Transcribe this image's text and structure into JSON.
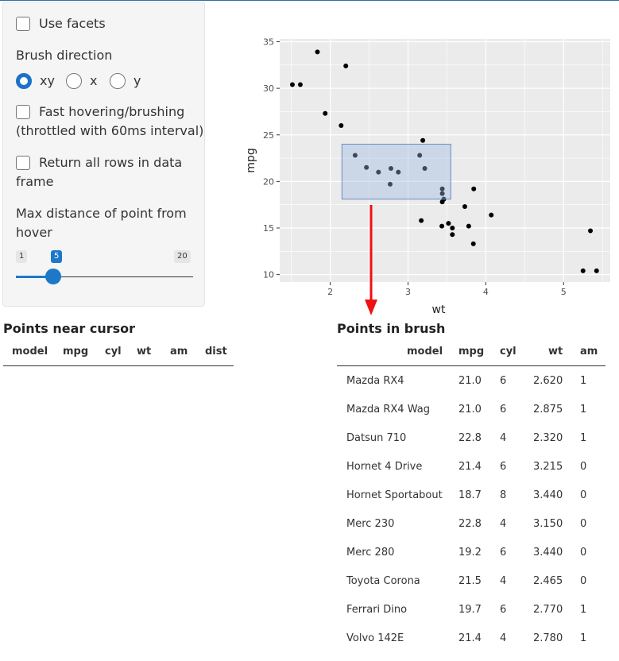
{
  "controls": {
    "use_facets_label": "Use facets",
    "brush_direction_label": "Brush direction",
    "brush_options": [
      "xy",
      "x",
      "y"
    ],
    "brush_selected": "xy",
    "fast_hover_label_1": "Fast hovering/brushing",
    "fast_hover_label_2": "(throttled with 60ms interval)",
    "return_rows_label_1": "Return all rows in data",
    "return_rows_label_2": "frame",
    "max_distance_label_1": "Max distance of point from",
    "max_distance_label_2": "hover",
    "slider": {
      "min": "1",
      "max": "20",
      "value": "5"
    }
  },
  "near_cursor": {
    "title": "Points near cursor",
    "columns": [
      "model",
      "mpg",
      "cyl",
      "wt",
      "am",
      "dist"
    ]
  },
  "in_brush": {
    "title": "Points in brush",
    "columns": [
      "model",
      "mpg",
      "cyl",
      "wt",
      "am"
    ],
    "rows": [
      [
        "Mazda RX4",
        "21.0",
        "6",
        "2.620",
        "1"
      ],
      [
        "Mazda RX4 Wag",
        "21.0",
        "6",
        "2.875",
        "1"
      ],
      [
        "Datsun 710",
        "22.8",
        "4",
        "2.320",
        "1"
      ],
      [
        "Hornet 4 Drive",
        "21.4",
        "6",
        "3.215",
        "0"
      ],
      [
        "Hornet Sportabout",
        "18.7",
        "8",
        "3.440",
        "0"
      ],
      [
        "Merc 230",
        "22.8",
        "4",
        "3.150",
        "0"
      ],
      [
        "Merc 280",
        "19.2",
        "6",
        "3.440",
        "0"
      ],
      [
        "Toyota Corona",
        "21.5",
        "4",
        "2.465",
        "0"
      ],
      [
        "Ferrari Dino",
        "19.7",
        "6",
        "2.770",
        "1"
      ],
      [
        "Volvo 142E",
        "21.4",
        "4",
        "2.780",
        "1"
      ]
    ]
  },
  "chart_data": {
    "type": "scatter",
    "xlabel": "wt",
    "ylabel": "mpg",
    "xticks": [
      "2",
      "3",
      "4",
      "5"
    ],
    "yticks": [
      "10",
      "15",
      "20",
      "25",
      "30",
      "35"
    ],
    "xlim": [
      1.35,
      5.6
    ],
    "ylim": [
      9.2,
      35.3
    ],
    "points": [
      [
        2.62,
        21.0
      ],
      [
        2.875,
        21.0
      ],
      [
        2.32,
        22.8
      ],
      [
        3.215,
        21.4
      ],
      [
        3.44,
        18.7
      ],
      [
        3.46,
        18.1
      ],
      [
        3.57,
        14.3
      ],
      [
        3.19,
        24.4
      ],
      [
        3.15,
        22.8
      ],
      [
        3.44,
        19.2
      ],
      [
        3.44,
        17.8
      ],
      [
        4.07,
        16.4
      ],
      [
        3.73,
        17.3
      ],
      [
        3.78,
        15.2
      ],
      [
        5.25,
        10.4
      ],
      [
        5.424,
        10.4
      ],
      [
        5.345,
        14.7
      ],
      [
        2.2,
        32.4
      ],
      [
        1.615,
        30.4
      ],
      [
        1.835,
        33.9
      ],
      [
        2.465,
        21.5
      ],
      [
        3.52,
        15.5
      ],
      [
        3.435,
        15.2
      ],
      [
        3.84,
        13.3
      ],
      [
        3.845,
        19.2
      ],
      [
        1.935,
        27.3
      ],
      [
        2.14,
        26.0
      ],
      [
        1.513,
        30.4
      ],
      [
        3.17,
        15.8
      ],
      [
        2.77,
        19.7
      ],
      [
        3.57,
        15.0
      ],
      [
        2.78,
        21.4
      ]
    ],
    "brush": {
      "xmin": 2.15,
      "xmax": 3.55,
      "ymin": 18.1,
      "ymax": 24.0
    },
    "colors": {
      "panel": "#ebebeb",
      "grid": "#ffffff",
      "point": "#000000",
      "brush_fill": "#9cb8e0",
      "brush_stroke": "#6a8fc7",
      "arrow": "#ee0000"
    }
  }
}
